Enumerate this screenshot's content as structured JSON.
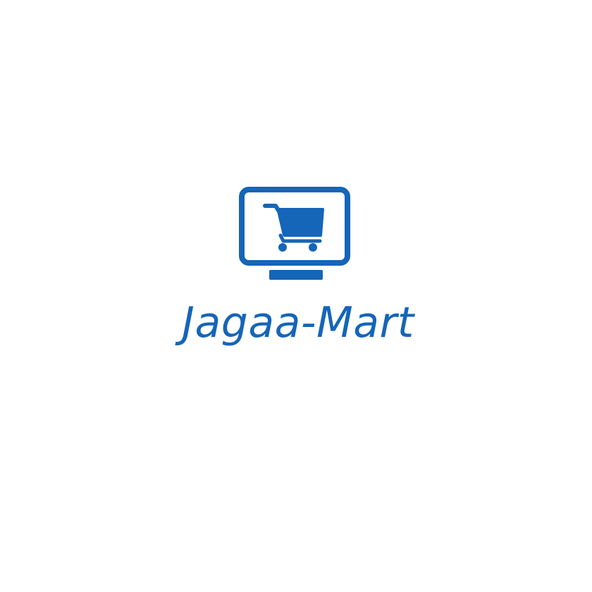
{
  "brand": {
    "name": "Jagaa-Mart",
    "color": "#1565B8",
    "background": "#FFFFFF"
  },
  "logo": {
    "icon": "monitor-with-shopping-cart-icon"
  }
}
